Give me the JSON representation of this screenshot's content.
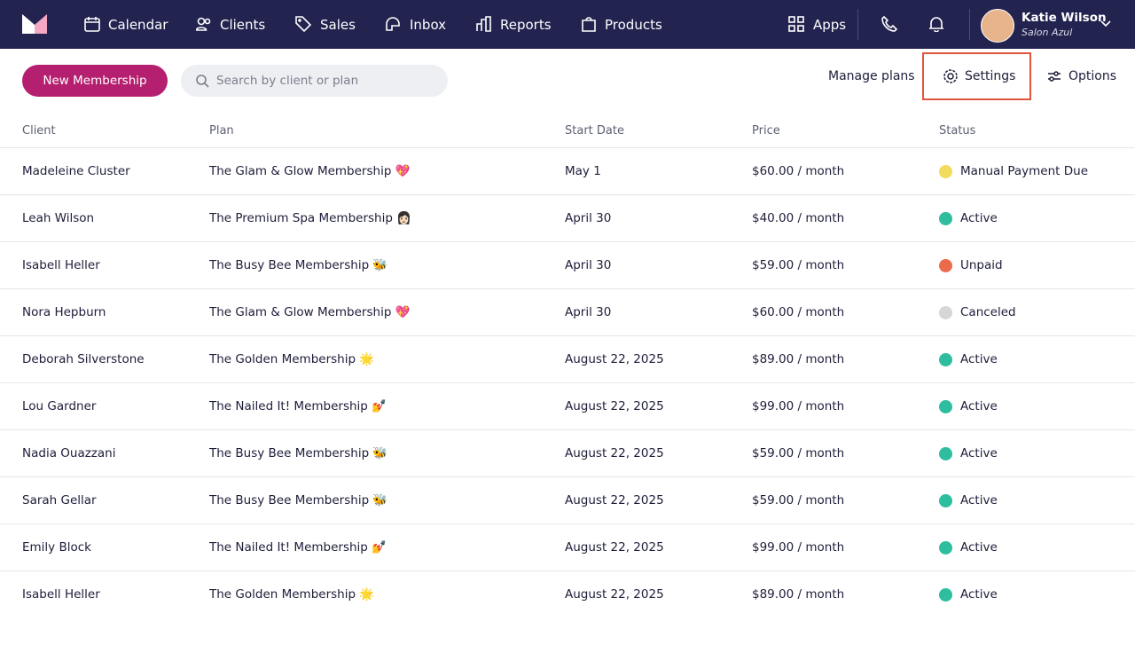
{
  "nav": {
    "items": [
      "Calendar",
      "Clients",
      "Sales",
      "Inbox",
      "Reports",
      "Products"
    ],
    "apps": "Apps",
    "user": {
      "name": "Katie Wilson",
      "business": "Salon Azul"
    }
  },
  "toolbar": {
    "new_button": "New Membership",
    "search_placeholder": "Search by client or plan",
    "manage_plans": "Manage plans",
    "settings": "Settings",
    "options": "Options"
  },
  "table": {
    "columns": [
      "Client",
      "Plan",
      "Start Date",
      "Price",
      "Status"
    ],
    "rows": [
      {
        "client": "Madeleine Cluster",
        "plan": "The Glam & Glow Membership 💖",
        "start_date": "May 1",
        "price": "$60.00 / month",
        "status": "Manual Payment Due",
        "status_color": "#f2dc5d"
      },
      {
        "client": "Leah Wilson",
        "plan": "The Premium Spa Membership 👩🏻",
        "start_date": "April 30",
        "price": "$40.00 / month",
        "status": "Active",
        "status_color": "#2ebd9f"
      },
      {
        "client": "Isabell Heller",
        "plan": "The Busy Bee Membership 🐝",
        "start_date": "April 30",
        "price": "$59.00 / month",
        "status": "Unpaid",
        "status_color": "#ec6a4c"
      },
      {
        "client": "Nora Hepburn",
        "plan": "The Glam & Glow Membership 💖",
        "start_date": "April 30",
        "price": "$60.00 / month",
        "status": "Canceled",
        "status_color": "#d6d6d6"
      },
      {
        "client": "Deborah Silverstone",
        "plan": "The Golden Membership 🌟",
        "start_date": "August 22, 2025",
        "price": "$89.00 / month",
        "status": "Active",
        "status_color": "#2ebd9f"
      },
      {
        "client": "Lou Gardner",
        "plan": "The Nailed It! Membership 💅",
        "start_date": "August 22, 2025",
        "price": "$99.00 / month",
        "status": "Active",
        "status_color": "#2ebd9f"
      },
      {
        "client": "Nadia Ouazzani",
        "plan": "The Busy Bee Membership 🐝",
        "start_date": "August 22, 2025",
        "price": "$59.00 / month",
        "status": "Active",
        "status_color": "#2ebd9f"
      },
      {
        "client": "Sarah Gellar",
        "plan": "The Busy Bee Membership 🐝",
        "start_date": "August 22, 2025",
        "price": "$59.00 / month",
        "status": "Active",
        "status_color": "#2ebd9f"
      },
      {
        "client": "Emily Block",
        "plan": "The Nailed It! Membership 💅",
        "start_date": "August 22, 2025",
        "price": "$99.00 / month",
        "status": "Active",
        "status_color": "#2ebd9f"
      },
      {
        "client": "Isabell Heller",
        "plan": "The Golden Membership 🌟",
        "start_date": "August 22, 2025",
        "price": "$89.00 / month",
        "status": "Active",
        "status_color": "#2ebd9f"
      }
    ]
  }
}
